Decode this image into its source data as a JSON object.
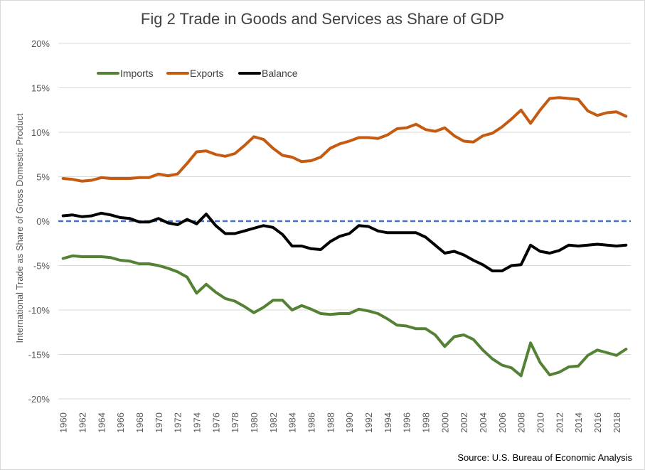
{
  "chart_data": {
    "type": "line",
    "title": "Fig 2 Trade in Goods and Services as Share of GDP",
    "ylabel": "International Trade as Share of Gross Domestic Product",
    "xlabel": "",
    "ylim": [
      -20,
      20
    ],
    "yticks": [
      -20,
      -15,
      -10,
      -5,
      0,
      5,
      10,
      15,
      20
    ],
    "ytick_labels": [
      "-20%",
      "-15%",
      "-10%",
      "-5%",
      "0%",
      "5%",
      "10%",
      "15%",
      "20%"
    ],
    "xticks": [
      "1960",
      "1962",
      "1964",
      "1966",
      "1968",
      "1970",
      "1972",
      "1974",
      "1976",
      "1978",
      "1980",
      "1982",
      "1984",
      "1986",
      "1988",
      "1990",
      "1992",
      "1994",
      "1996",
      "1998",
      "2000",
      "2002",
      "2004",
      "2006",
      "2008",
      "2010",
      "2012",
      "2014",
      "2016",
      "2018"
    ],
    "x": [
      1960,
      1961,
      1962,
      1963,
      1964,
      1965,
      1966,
      1967,
      1968,
      1969,
      1970,
      1971,
      1972,
      1973,
      1974,
      1975,
      1976,
      1977,
      1978,
      1979,
      1980,
      1981,
      1982,
      1983,
      1984,
      1985,
      1986,
      1987,
      1988,
      1989,
      1990,
      1991,
      1992,
      1993,
      1994,
      1995,
      1996,
      1997,
      1998,
      1999,
      2000,
      2001,
      2002,
      2003,
      2004,
      2005,
      2006,
      2007,
      2008,
      2009,
      2010,
      2011,
      2012,
      2013,
      2014,
      2015,
      2016,
      2017,
      2018,
      2019
    ],
    "legend_position": "top-left",
    "grid": true,
    "zero_line": {
      "value": 0,
      "color": "#4472c4",
      "style": "dashed"
    },
    "series": [
      {
        "name": "Imports",
        "color": "#548235",
        "values": [
          -4.2,
          -3.9,
          -4.0,
          -4.0,
          -4.0,
          -4.1,
          -4.4,
          -4.5,
          -4.8,
          -4.8,
          -5.0,
          -5.3,
          -5.7,
          -6.3,
          -8.1,
          -7.1,
          -8.0,
          -8.7,
          -9.0,
          -9.6,
          -10.3,
          -9.7,
          -8.9,
          -8.9,
          -10.0,
          -9.5,
          -9.9,
          -10.4,
          -10.5,
          -10.4,
          -10.4,
          -9.9,
          -10.1,
          -10.4,
          -11.0,
          -11.7,
          -11.8,
          -12.1,
          -12.1,
          -12.8,
          -14.1,
          -13.0,
          -12.8,
          -13.3,
          -14.5,
          -15.5,
          -16.2,
          -16.5,
          -17.4,
          -13.7,
          -15.9,
          -17.3,
          -17.0,
          -16.4,
          -16.3,
          -15.1,
          -14.5,
          -14.8,
          -15.1,
          -14.4
        ]
      },
      {
        "name": "Exports",
        "color": "#c55a11",
        "values": [
          4.8,
          4.7,
          4.5,
          4.6,
          4.9,
          4.8,
          4.8,
          4.8,
          4.9,
          4.9,
          5.3,
          5.1,
          5.3,
          6.5,
          7.8,
          7.9,
          7.5,
          7.3,
          7.6,
          8.5,
          9.5,
          9.2,
          8.2,
          7.4,
          7.2,
          6.7,
          6.8,
          7.2,
          8.2,
          8.7,
          9.0,
          9.4,
          9.4,
          9.3,
          9.7,
          10.4,
          10.5,
          10.9,
          10.3,
          10.1,
          10.5,
          9.6,
          9.0,
          8.9,
          9.6,
          9.9,
          10.6,
          11.5,
          12.5,
          11.0,
          12.5,
          13.8,
          13.9,
          13.8,
          13.7,
          12.4,
          11.9,
          12.2,
          12.3,
          11.8
        ]
      },
      {
        "name": "Balance",
        "color": "#000000",
        "values": [
          0.6,
          0.7,
          0.5,
          0.6,
          0.9,
          0.7,
          0.4,
          0.3,
          -0.1,
          -0.1,
          0.3,
          -0.2,
          -0.4,
          0.2,
          -0.3,
          0.8,
          -0.5,
          -1.4,
          -1.4,
          -1.1,
          -0.8,
          -0.5,
          -0.7,
          -1.5,
          -2.8,
          -2.8,
          -3.1,
          -3.2,
          -2.3,
          -1.7,
          -1.4,
          -0.5,
          -0.6,
          -1.1,
          -1.3,
          -1.3,
          -1.3,
          -1.3,
          -1.8,
          -2.7,
          -3.6,
          -3.4,
          -3.8,
          -4.4,
          -4.9,
          -5.6,
          -5.6,
          -5.0,
          -4.9,
          -2.7,
          -3.4,
          -3.6,
          -3.3,
          -2.7,
          -2.8,
          -2.7,
          -2.6,
          -2.7,
          -2.8,
          -2.7
        ]
      }
    ]
  },
  "source_text": "Source: U.S. Bureau of Economic Analysis"
}
